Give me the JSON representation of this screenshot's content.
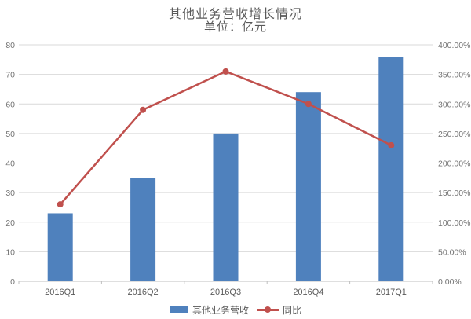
{
  "chart_data": {
    "type": "combo",
    "title": "其他业务营收增长情况",
    "subtitle": "单位：亿元",
    "categories": [
      "2016Q1",
      "2016Q2",
      "2016Q3",
      "2016Q4",
      "2017Q1"
    ],
    "series": [
      {
        "name": "其他业务营收",
        "chart_type": "bar",
        "axis": "left",
        "color": "#4F81BD",
        "values": [
          23,
          35,
          50,
          64,
          76
        ]
      },
      {
        "name": "同比",
        "chart_type": "line",
        "axis": "right",
        "color": "#C0504D",
        "values_percent": [
          130,
          290,
          355,
          300,
          230
        ]
      }
    ],
    "left_axis": {
      "min": 0,
      "max": 80,
      "step": 10,
      "ticks": [
        "0",
        "10",
        "20",
        "30",
        "40",
        "50",
        "60",
        "70",
        "80"
      ]
    },
    "right_axis": {
      "min": 0,
      "max": 400,
      "step": 50,
      "ticks": [
        "0.00%",
        "50.00%",
        "100.00%",
        "150.00%",
        "200.00%",
        "250.00%",
        "300.00%",
        "350.00%",
        "400.00%"
      ]
    },
    "grid": true,
    "gridline_color": "#D9D9D9",
    "axis_line_color": "#BFBFBF",
    "legend_position": "bottom",
    "text_color": "#595959",
    "background": "#FFFFFF"
  }
}
